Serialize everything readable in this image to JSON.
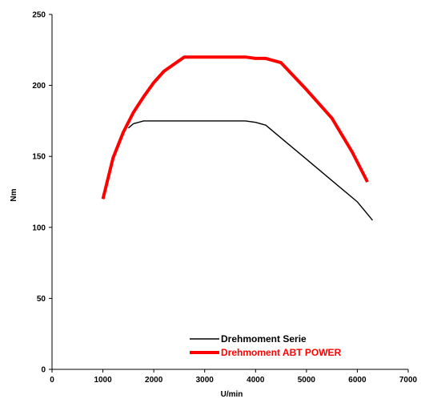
{
  "chart_data": {
    "type": "line",
    "title": "",
    "xlabel": "U/min",
    "ylabel": "Nm",
    "xlim": [
      0,
      7000
    ],
    "ylim": [
      0,
      250
    ],
    "x_ticks": [
      0,
      1000,
      2000,
      3000,
      4000,
      5000,
      6000,
      7000
    ],
    "y_ticks": [
      0,
      50,
      100,
      150,
      200,
      250
    ],
    "x_tick_labels": [
      "0",
      "1000",
      "2000",
      "3000",
      "4000",
      "5000",
      "6000",
      "7000"
    ],
    "y_tick_labels": [
      "0",
      "50",
      "100",
      "150",
      "200",
      "250"
    ],
    "grid": false,
    "legend_position": "bottom-right",
    "series": [
      {
        "name": "Drehmoment Serie",
        "color": "#000000",
        "x": [
          1500,
          1600,
          1700,
          1800,
          2000,
          2500,
          3000,
          3500,
          3800,
          4000,
          4200,
          4500,
          5000,
          5500,
          6000,
          6300
        ],
        "y": [
          170,
          173,
          174,
          175,
          175,
          175,
          175,
          175,
          175,
          174,
          172,
          163,
          148,
          133,
          118,
          105
        ]
      },
      {
        "name": "Drehmoment ABT POWER",
        "color": "#ff0000",
        "x": [
          1000,
          1200,
          1400,
          1600,
          1800,
          2000,
          2200,
          2400,
          2600,
          3000,
          3500,
          3800,
          4000,
          4200,
          4500,
          5000,
          5500,
          5900,
          6200
        ],
        "y": [
          120,
          149,
          167,
          181,
          192,
          202,
          210,
          215,
          220,
          220,
          220,
          220,
          219,
          219,
          216,
          197,
          177,
          153,
          132
        ]
      }
    ]
  }
}
